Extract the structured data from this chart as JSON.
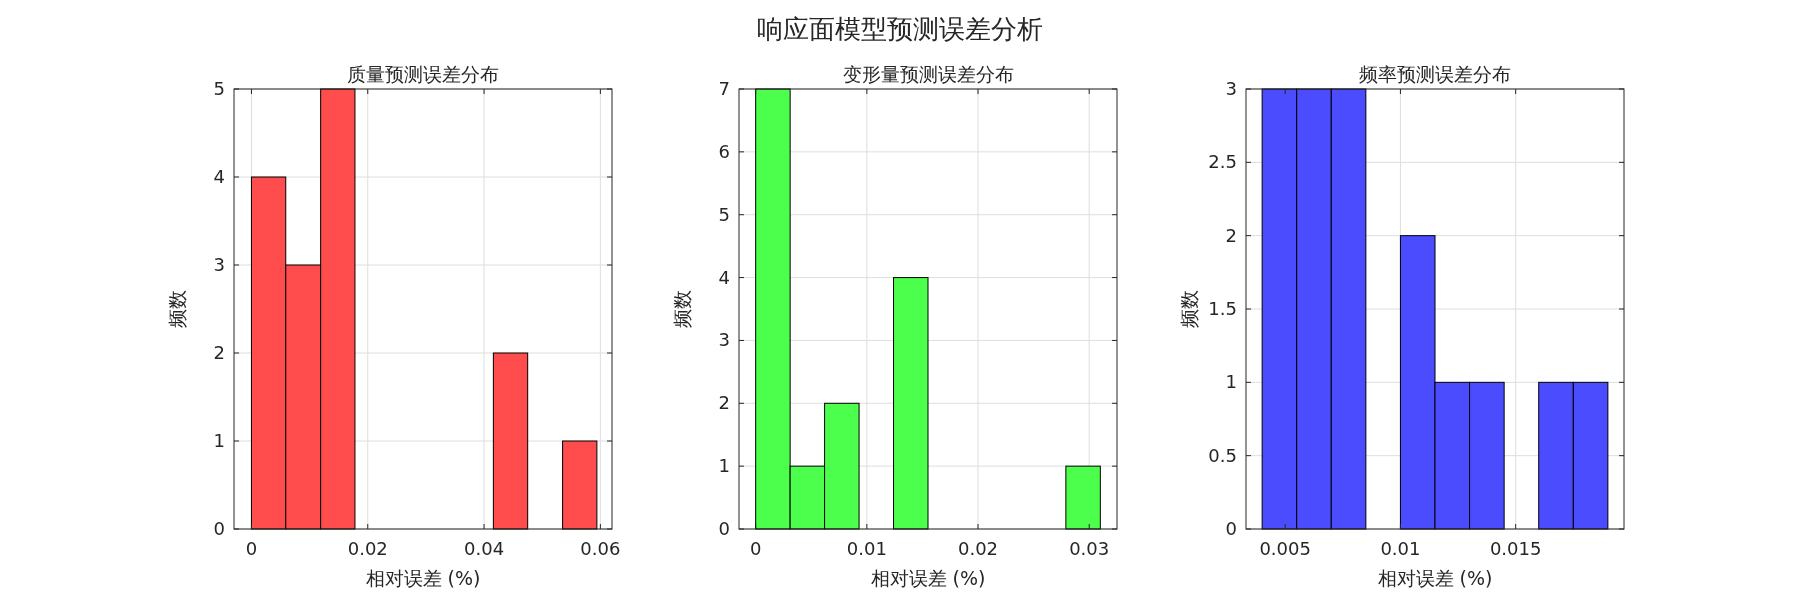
{
  "chart_data": [
    {
      "type": "histogram",
      "title": "质量预测误差分布",
      "xlabel": "相对误差 (%)",
      "ylabel": "频数",
      "annotations": [
        "响应面模型预测误差分析"
      ],
      "color": "#ff4c4c",
      "bins": [
        0,
        0.0059,
        0.0119,
        0.0178,
        0.0416,
        0.0475,
        0.0535,
        0.0594
      ],
      "values": [
        4,
        3,
        5,
        0,
        2,
        0,
        1
      ],
      "xlim": [
        -0.003,
        0.062
      ],
      "xticks": [
        0,
        0.02,
        0.04,
        0.06
      ],
      "ylim": [
        0,
        5
      ],
      "yticks": [
        0,
        1,
        2,
        3,
        4,
        5
      ],
      "grid": true
    },
    {
      "type": "histogram",
      "title": "变形量预测误差分布",
      "xlabel": "相对误差 (%)",
      "ylabel": "频数",
      "color": "#4cff4c",
      "bins": [
        0,
        0.0031,
        0.0062,
        0.0093,
        0.0124,
        0.0155,
        0.0279,
        0.031
      ],
      "values": [
        7,
        1,
        2,
        0,
        4,
        0,
        1
      ],
      "xlim": [
        -0.0015,
        0.0325
      ],
      "xticks": [
        0,
        0.01,
        0.02,
        0.03
      ],
      "ylim": [
        0,
        7
      ],
      "yticks": [
        0,
        1,
        2,
        3,
        4,
        5,
        6,
        7
      ],
      "grid": true
    },
    {
      "type": "histogram",
      "title": "频率预测误差分布",
      "xlabel": "相对误差 (%)",
      "ylabel": "频数",
      "color": "#4c4cff",
      "bins": [
        0.004,
        0.0055,
        0.007,
        0.0085,
        0.01,
        0.0115,
        0.013,
        0.0145,
        0.016,
        0.0175,
        0.019
      ],
      "values": [
        3,
        3,
        3,
        0,
        2,
        1,
        1,
        0,
        1,
        1
      ],
      "xlim": [
        0.0033,
        0.0197
      ],
      "xticks": [
        0.005,
        0.01,
        0.015
      ],
      "ylim": [
        0,
        3
      ],
      "yticks": [
        0,
        0.5,
        1,
        1.5,
        2,
        2.5,
        3
      ],
      "grid": true
    }
  ]
}
